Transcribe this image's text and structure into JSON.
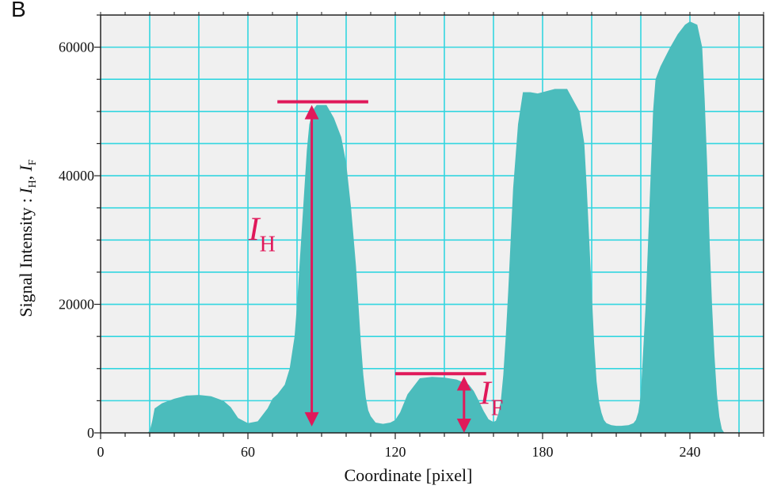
{
  "panel_label": "B",
  "chart_data": {
    "type": "area",
    "xlabel": "Coordinate [pixel]",
    "ylabel": "Signal Intensity : I_H, I_F",
    "ylabel_parts": {
      "main": "Signal Intensity : ",
      "i1": "I",
      "sub1": "H",
      "sep": ", ",
      "i2": "I",
      "sub2": "F"
    },
    "xlim": [
      0,
      270
    ],
    "ylim": [
      0,
      65000
    ],
    "x_ticks": [
      0,
      60,
      120,
      180,
      240
    ],
    "y_ticks": [
      0,
      20000,
      40000,
      60000
    ],
    "x_tick_labels": [
      "0",
      "60",
      "120",
      "180",
      "240"
    ],
    "y_tick_labels": [
      "0",
      "20000",
      "40000",
      "60000"
    ],
    "grid": true,
    "colors": {
      "fill": "#4bbcbc",
      "grid": "#33d6e0",
      "background": "#f0f0f0",
      "annotation": "#e0195a"
    },
    "series": [
      {
        "x": [
          19,
          20,
          21,
          22,
          25,
          30,
          35,
          40,
          45,
          50,
          53,
          56,
          60,
          64,
          68,
          70,
          72,
          75,
          77,
          79,
          80,
          81,
          82,
          83,
          84,
          85,
          86,
          87,
          88,
          90,
          92,
          95,
          98,
          100,
          102,
          104,
          105,
          106,
          107,
          108,
          109,
          110,
          112,
          115,
          118,
          120,
          122,
          125,
          130,
          135,
          140,
          145,
          150,
          152,
          154,
          156,
          158,
          160,
          161,
          162,
          163,
          164,
          165,
          166,
          167,
          168,
          170,
          172,
          175,
          178,
          180,
          185,
          190,
          195,
          197,
          198,
          199,
          200,
          201,
          202,
          203,
          204,
          205,
          206,
          208,
          210,
          212,
          215,
          217,
          218,
          219,
          220,
          221,
          222,
          223,
          224,
          225,
          226,
          228,
          230,
          232,
          235,
          238,
          240,
          243,
          245,
          246,
          247,
          248,
          249,
          250,
          251,
          252,
          253,
          254
        ],
        "y": [
          0,
          300,
          1800,
          3800,
          4600,
          5300,
          5800,
          5900,
          5700,
          5000,
          4000,
          2300,
          1500,
          1800,
          3800,
          5300,
          6000,
          7500,
          10000,
          15000,
          20000,
          26000,
          32000,
          38000,
          44000,
          48000,
          49500,
          50500,
          51000,
          51000,
          51000,
          49000,
          46000,
          42000,
          35000,
          26000,
          20000,
          14000,
          9000,
          5500,
          3500,
          2600,
          1600,
          1400,
          1600,
          2000,
          3200,
          6000,
          8500,
          8700,
          8600,
          8300,
          7500,
          6500,
          5000,
          3400,
          2100,
          1700,
          1900,
          3000,
          5000,
          9000,
          15000,
          22000,
          30000,
          38000,
          48000,
          53000,
          53000,
          52800,
          53000,
          53500,
          53500,
          50000,
          45000,
          38000,
          30000,
          22000,
          14000,
          8000,
          4800,
          3100,
          2000,
          1500,
          1200,
          1100,
          1100,
          1200,
          1500,
          2000,
          3200,
          6000,
          13000,
          20000,
          30000,
          40000,
          50000,
          55000,
          57000,
          58500,
          60000,
          62000,
          63500,
          64000,
          63500,
          60000,
          52000,
          42000,
          30000,
          20000,
          12000,
          6000,
          2500,
          600,
          0
        ]
      }
    ],
    "annotations": [
      {
        "label_main": "I",
        "label_sub": "H",
        "x": 86,
        "y_from": 1000,
        "y_to": 51000,
        "bar_x_from": 72,
        "bar_x_to": 109,
        "bar_y": 51500
      },
      {
        "label_main": "I",
        "label_sub": "F",
        "x": 148,
        "y_from": 0,
        "y_to": 8800,
        "bar_x_from": 120,
        "bar_x_to": 157,
        "bar_y": 9200
      }
    ]
  }
}
